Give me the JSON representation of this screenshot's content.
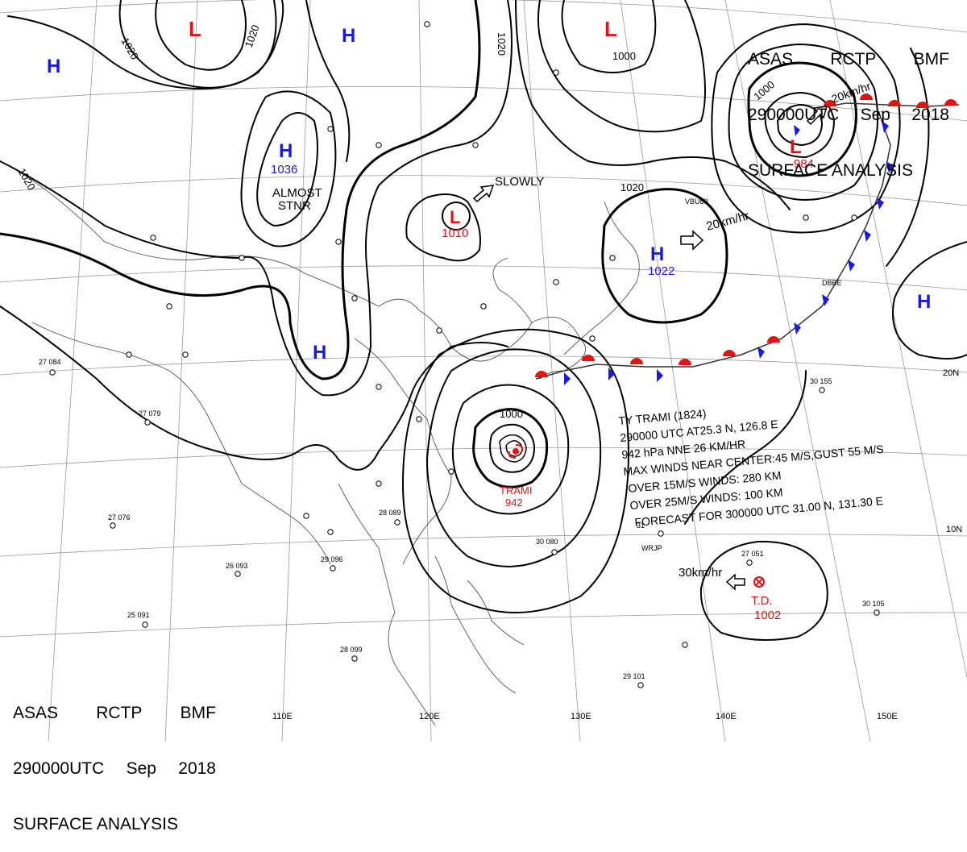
{
  "header": {
    "line1": [
      "ASAS",
      "RCTP",
      "BMF"
    ],
    "line2": [
      "290000UTC",
      "Sep",
      "2018"
    ],
    "line3": "SURFACE ANALYSIS"
  },
  "pressure_centers": [
    {
      "type": "L",
      "value": ""
    },
    {
      "type": "L",
      "value": ""
    },
    {
      "type": "H",
      "value": ""
    },
    {
      "type": "H",
      "value": ""
    },
    {
      "type": "H",
      "value": "1036"
    },
    {
      "type": "L",
      "value": "1010"
    },
    {
      "type": "L",
      "value": "984"
    },
    {
      "type": "H",
      "value": "1022"
    },
    {
      "type": "H",
      "value": ""
    },
    {
      "type": "H",
      "value": ""
    }
  ],
  "isobar_labels": [
    "1020",
    "1020",
    "1020",
    "1020",
    "1000",
    "1000",
    "1020",
    "1000"
  ],
  "annotations": {
    "almost_stnr": [
      "ALMOST",
      "STNR"
    ],
    "slowly": "SLOWLY",
    "speed_ne": "20km/hr",
    "speed_east": "20km/hr",
    "speed_td": "30km/hr",
    "typhoon_name": "TRAMI",
    "typhoon_pressure": "942",
    "td_label": "T.D.",
    "td_pressure": "1002"
  },
  "typhoon_info": [
    "TY  TRAMI  (1824)",
    "290000 UTC  AT25.3 N, 126.8 E",
    "942 hPa  NNE  26 KM/HR",
    "MAX WINDS NEAR CENTER:45 M/S,GUST 55 M/S",
    "OVER 15M/S WINDS: 280 KM",
    "OVER 25M/S WINDS: 100 KM",
    "FORECAST FOR 300000 UTC 31.00 N, 131.30 E"
  ],
  "lat_labels": [
    "20N",
    "10N"
  ],
  "lon_labels": [
    "110E",
    "120E",
    "130E",
    "140E",
    "150E"
  ],
  "station_labels": [
    "27 084",
    "27 079",
    "27 076",
    "26 093",
    "25 091",
    "29 096",
    "28 089",
    "28 099",
    "29 101",
    "30 080",
    "31",
    "30 105",
    "27 051",
    "30 155",
    "WRJP",
    "VBU89",
    "DBBE"
  ],
  "colors": {
    "isobar": "#000000",
    "high": "#1a1adc",
    "low": "#e01414",
    "cold_front": "#1a1adc",
    "warm_front": "#e01414",
    "grid": "#9a9a9a",
    "coast": "#555555"
  }
}
